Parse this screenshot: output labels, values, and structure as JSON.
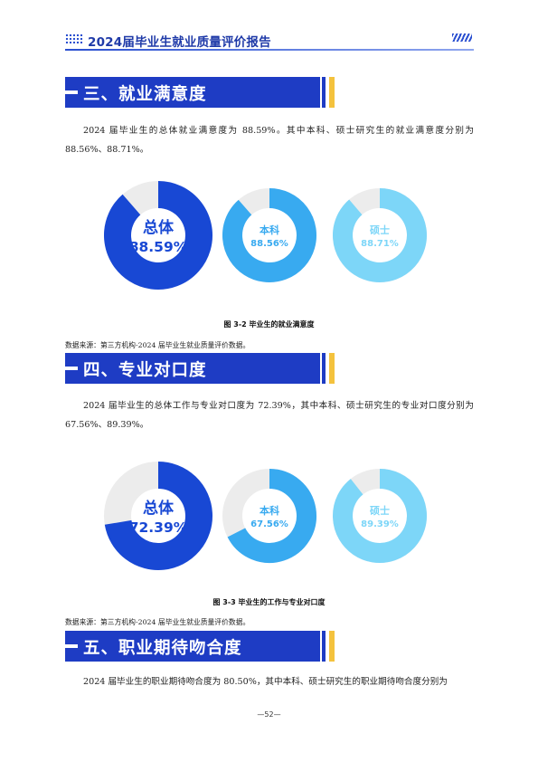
{
  "header": {
    "title": "2024届毕业生就业质量评价报告"
  },
  "sections": [
    {
      "heading": "三、就业满意度",
      "paragraph": "2024 届毕业生的总体就业满意度为 88.59%。其中本科、硕士研究生的就业满意度分别为 88.56%、88.71%。",
      "caption": "图 3-2  毕业生的就业满意度",
      "source": "数据来源：第三方机构-2024 届毕业生就业质量评价数据。"
    },
    {
      "heading": "四、专业对口度",
      "paragraph": "2024 届毕业生的总体工作与专业对口度为 72.39%，其中本科、硕士研究生的专业对口度分别为 67.56%、89.39%。",
      "caption": "图 3-3  毕业生的工作与专业对口度",
      "source": "数据来源：第三方机构-2024 届毕业生就业质量评价数据。"
    },
    {
      "heading": "五、职业期待吻合度",
      "paragraph": "2024 届毕业生的职业期待吻合度为 80.50%，其中本科、硕士研究生的职业期待吻合度分别为"
    }
  ],
  "chart_data": [
    {
      "type": "pie",
      "categories": [
        "总体",
        "本科",
        "硕士"
      ],
      "values": [
        88.59,
        88.56,
        88.71
      ],
      "value_labels": [
        "88.59%",
        "88.56%",
        "88.71%"
      ],
      "colors": [
        "#1848d4",
        "#38aaf0",
        "#7dd6f8"
      ],
      "track_color": "#ececec"
    },
    {
      "type": "pie",
      "categories": [
        "总体",
        "本科",
        "硕士"
      ],
      "values": [
        72.39,
        67.56,
        89.39
      ],
      "value_labels": [
        "72.39%",
        "67.56%",
        "89.39%"
      ],
      "colors": [
        "#1848d4",
        "#38aaf0",
        "#7dd6f8"
      ],
      "track_color": "#ececec"
    }
  ],
  "footer": {
    "page": "—52—"
  }
}
